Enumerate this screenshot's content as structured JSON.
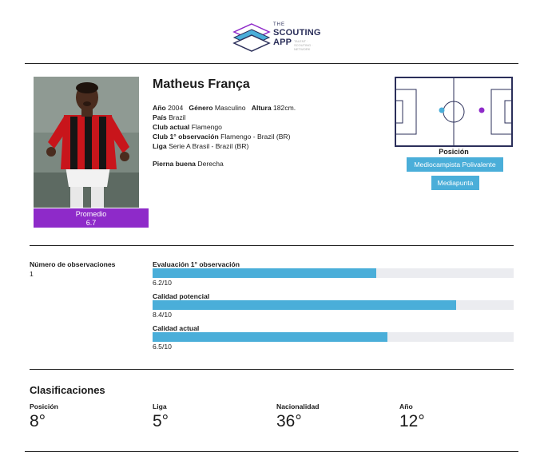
{
  "logo": {
    "the": "THE",
    "line1": "SCOUTING",
    "line2": "APP",
    "tagline": "TALENT · SCOUTING · NETWORK"
  },
  "player": {
    "name": "Matheus França",
    "average_label": "Promedio",
    "average_value": "6.7",
    "year_label": "Año",
    "year": "2004",
    "gender_label": "Género",
    "gender": "Masculino",
    "height_label": "Altura",
    "height": "182cm.",
    "country_label": "País",
    "country": "Brazil",
    "club_label": "Club actual",
    "club": "Flamengo",
    "first_obs_club_label": "Club 1° observación",
    "first_obs_club": "Flamengo - Brazil (BR)",
    "league_label": "Liga",
    "league": "Serie A Brasil - Brazil (BR)",
    "foot_label": "Pierna buena",
    "foot": "Derecha"
  },
  "position": {
    "title": "Posición",
    "primary": "Mediocampista Polivalente",
    "secondary": "Mediapunta",
    "marker_colors": {
      "primary": "#4aaed9",
      "secondary": "#8e2ac9"
    }
  },
  "observations": {
    "label": "Número de observaciones",
    "value": "1"
  },
  "ratings": [
    {
      "label": "Evaluación 1° observación",
      "value": 6.2,
      "display": "6.2/10"
    },
    {
      "label": "Calidad potencial",
      "value": 8.4,
      "display": "8.4/10"
    },
    {
      "label": "Calidad actual",
      "value": 6.5,
      "display": "6.5/10"
    }
  ],
  "rating_max": 10,
  "classifications": {
    "title": "Clasificaciones",
    "items": [
      {
        "label": "Posición",
        "value": "8°"
      },
      {
        "label": "Liga",
        "value": "5°"
      },
      {
        "label": "Nacionalidad",
        "value": "36°"
      },
      {
        "label": "Año",
        "value": "12°"
      }
    ]
  },
  "colors": {
    "accent": "#4aaed9",
    "purple": "#8e2ac9",
    "navy": "#2b2f5a",
    "track": "#ebecf0"
  }
}
